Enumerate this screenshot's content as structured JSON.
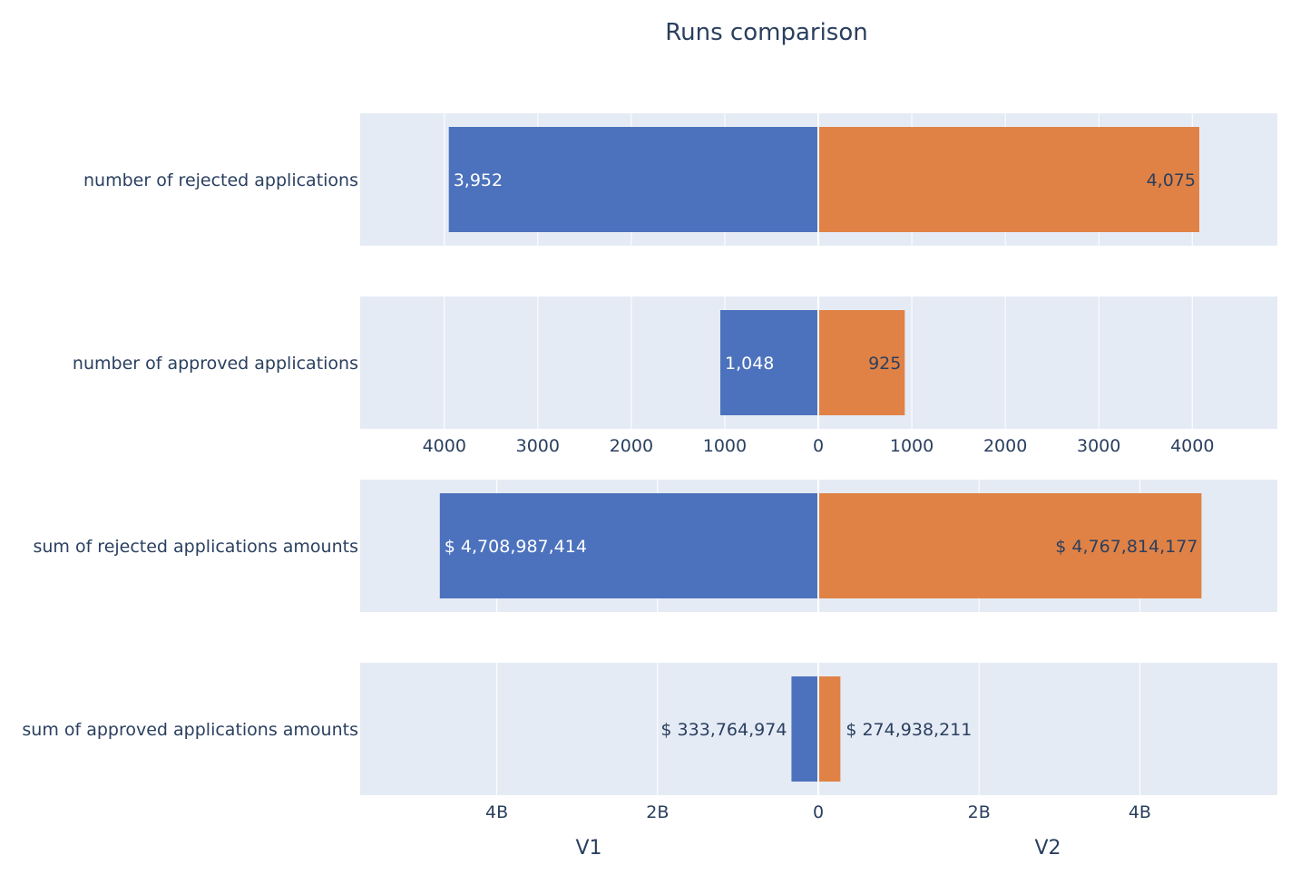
{
  "chart_data": {
    "type": "bar",
    "orientation": "horizontal",
    "title": "Runs comparison",
    "series": [
      {
        "name": "V1",
        "color": "#4C72BD",
        "label_color": "#ffffff"
      },
      {
        "name": "V2",
        "color": "#E08245",
        "label_color": "#2A3F5F"
      }
    ],
    "panels": [
      {
        "category": "number of rejected applications",
        "values": [
          3952,
          4075
        ],
        "value_labels": [
          "3,952",
          "4,075"
        ],
        "xlim": [
          -4900,
          4900
        ],
        "label_inside": true,
        "ticks": []
      },
      {
        "category": "number of approved applications",
        "values": [
          1048,
          925
        ],
        "value_labels": [
          "1,048",
          "925"
        ],
        "xlim": [
          -4900,
          4900
        ],
        "label_inside": true,
        "tick_values": [
          -4000,
          -3000,
          -2000,
          -1000,
          0,
          1000,
          2000,
          3000,
          4000
        ],
        "tick_labels": [
          "4000",
          "3000",
          "2000",
          "1000",
          "0",
          "1000",
          "2000",
          "3000",
          "4000"
        ]
      },
      {
        "category": "sum of rejected applications amounts",
        "values": [
          4708987414,
          4767814177
        ],
        "value_labels": [
          "$ 4,708,987,414",
          "$ 4,767,814,177"
        ],
        "xlim": [
          -5700000000,
          5700000000
        ],
        "label_inside": true,
        "ticks": []
      },
      {
        "category": "sum of approved applications amounts",
        "values": [
          333764974,
          274938211
        ],
        "value_labels": [
          "$ 333,764,974",
          "$ 274,938,211"
        ],
        "xlim": [
          -5700000000,
          5700000000
        ],
        "label_inside": false,
        "tick_values": [
          -4000000000,
          -2000000000,
          0,
          2000000000,
          4000000000
        ],
        "tick_labels": [
          "4B",
          "2B",
          "0",
          "2B",
          "4B"
        ]
      }
    ],
    "bottom_labels": [
      "V1",
      "V2"
    ],
    "grid": true,
    "colors": {
      "plot_bg": "#E5EBF5",
      "grid": "#ffffff",
      "text": "#2A3F5F"
    }
  }
}
